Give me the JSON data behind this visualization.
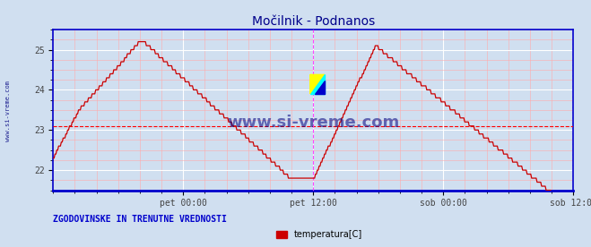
{
  "title": "Močilnik - Podnanos",
  "title_color": "#00008B",
  "bg_color": "#d0dff0",
  "plot_bg_color": "#d0dff0",
  "line_color": "#cc0000",
  "grid_major_color": "#ffffff",
  "grid_minor_color": "#ffaaaa",
  "hline_color": "#ff0000",
  "hline_y": 23.1,
  "vline_color": "#ff44ff",
  "vline_dashed": true,
  "vline_positions": [
    0.5,
    1.0
  ],
  "yticks": [
    22,
    23,
    24,
    25
  ],
  "ymin": 21.5,
  "ymax": 25.5,
  "xtick_labels": [
    "pet 00:00",
    "pet 12:00",
    "sob 00:00",
    "sob 12:00"
  ],
  "xtick_positions": [
    0.25,
    0.5,
    0.75,
    1.0
  ],
  "bottom_label": "ZGODOVINSKE IN TRENUTNE VREDNOSTI",
  "bottom_label_color": "#0000cc",
  "legend_label": "temperatura[C]",
  "legend_color": "#cc0000",
  "watermark": "www.si-vreme.com",
  "watermark_color": "#000080",
  "side_label": "www.si-vreme.com",
  "side_label_color": "#000080",
  "axes_border_color": "#0000cc",
  "bottom_border_color": "#0000cc"
}
